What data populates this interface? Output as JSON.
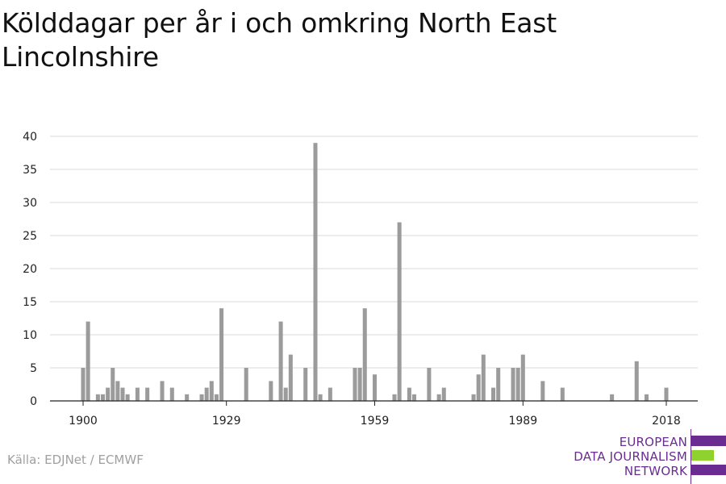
{
  "title": "Kölddagar per år i och omkring North East Lincolnshire",
  "source": "Källa: EDJNet / ECMWF",
  "logo": {
    "lines": [
      "EUROPEAN",
      "DATA JOURNALISM",
      "NETWORK"
    ],
    "colors": {
      "purple": "#6a2c91",
      "green": "#8fd22e"
    }
  },
  "chart_data": {
    "type": "bar",
    "title": "Kölddagar per år i och omkring North East Lincolnshire",
    "xlabel": "",
    "ylabel": "",
    "xlim": [
      1900,
      2018
    ],
    "ylim": [
      0,
      40
    ],
    "y_ticks": [
      0,
      5,
      10,
      15,
      20,
      25,
      30,
      35,
      40
    ],
    "x_ticks": [
      1900,
      1929,
      1959,
      1989,
      2018
    ],
    "grid": true,
    "bar_color": "#9b9b9b",
    "x": [
      1900,
      1901,
      1903,
      1904,
      1905,
      1906,
      1907,
      1908,
      1909,
      1911,
      1913,
      1916,
      1918,
      1921,
      1924,
      1925,
      1926,
      1927,
      1928,
      1933,
      1938,
      1940,
      1941,
      1942,
      1945,
      1947,
      1948,
      1950,
      1955,
      1956,
      1957,
      1959,
      1963,
      1964,
      1966,
      1967,
      1970,
      1972,
      1973,
      1979,
      1980,
      1981,
      1983,
      1984,
      1987,
      1988,
      1989,
      1993,
      1997,
      2007,
      2012,
      2014,
      2018
    ],
    "values": [
      5,
      12,
      1,
      1,
      2,
      5,
      3,
      2,
      1,
      2,
      2,
      3,
      2,
      1,
      1,
      2,
      3,
      1,
      14,
      5,
      3,
      12,
      2,
      7,
      5,
      39,
      1,
      2,
      5,
      5,
      14,
      4,
      1,
      27,
      2,
      1,
      5,
      1,
      2,
      1,
      4,
      7,
      2,
      5,
      5,
      5,
      7,
      3,
      2,
      1,
      6,
      1,
      2
    ]
  }
}
